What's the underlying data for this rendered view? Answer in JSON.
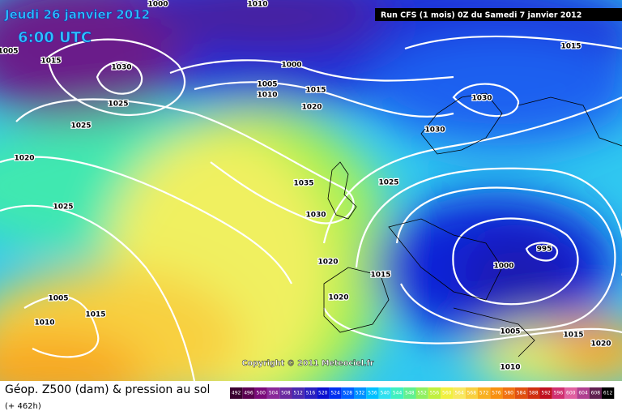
{
  "header": {
    "valid_date": "Jeudi 26 janvier 2012",
    "valid_time": "6:00 UTC",
    "run_info": "Run CFS (1 mois) 0Z du Samedi 7 janvier 2012"
  },
  "footer": {
    "copyright": "Copyright © 2011 Meteociel.fr",
    "description": "Géop. Z500 (dam) & pression au sol",
    "lead_time": "(+ 462h)"
  },
  "isobar_labels": [
    1000,
    1005,
    1010,
    1015,
    1030,
    1025,
    1025,
    1020,
    1025,
    1005,
    1010,
    1015,
    1000,
    1005,
    1010,
    1015,
    1020,
    1035,
    1030,
    1025,
    1020,
    1015,
    1020,
    1030,
    1030,
    1015,
    995,
    1000,
    1005,
    1015,
    1020,
    1010
  ],
  "legend": {
    "values": [
      492,
      496,
      500,
      504,
      508,
      512,
      516,
      520,
      524,
      528,
      532,
      536,
      540,
      544,
      548,
      552,
      556,
      560,
      564,
      568,
      572,
      576,
      580,
      584,
      588,
      592,
      596,
      600,
      604,
      608,
      612
    ],
    "colors": [
      "#3a0030",
      "#5a0050",
      "#7a0a7a",
      "#8a2a9a",
      "#6a2aa0",
      "#4a2ab0",
      "#2a20c0",
      "#0a10d0",
      "#0030f0",
      "#0060ff",
      "#0090ff",
      "#00c0ff",
      "#30e0f0",
      "#40f0c0",
      "#60f090",
      "#90f060",
      "#c0f040",
      "#f0f040",
      "#f8e860",
      "#f8d040",
      "#f8b020",
      "#f89010",
      "#f07010",
      "#e05010",
      "#d03010",
      "#c01020",
      "#d03070",
      "#e060a0",
      "#b04090",
      "#602050",
      "#000000"
    ]
  }
}
